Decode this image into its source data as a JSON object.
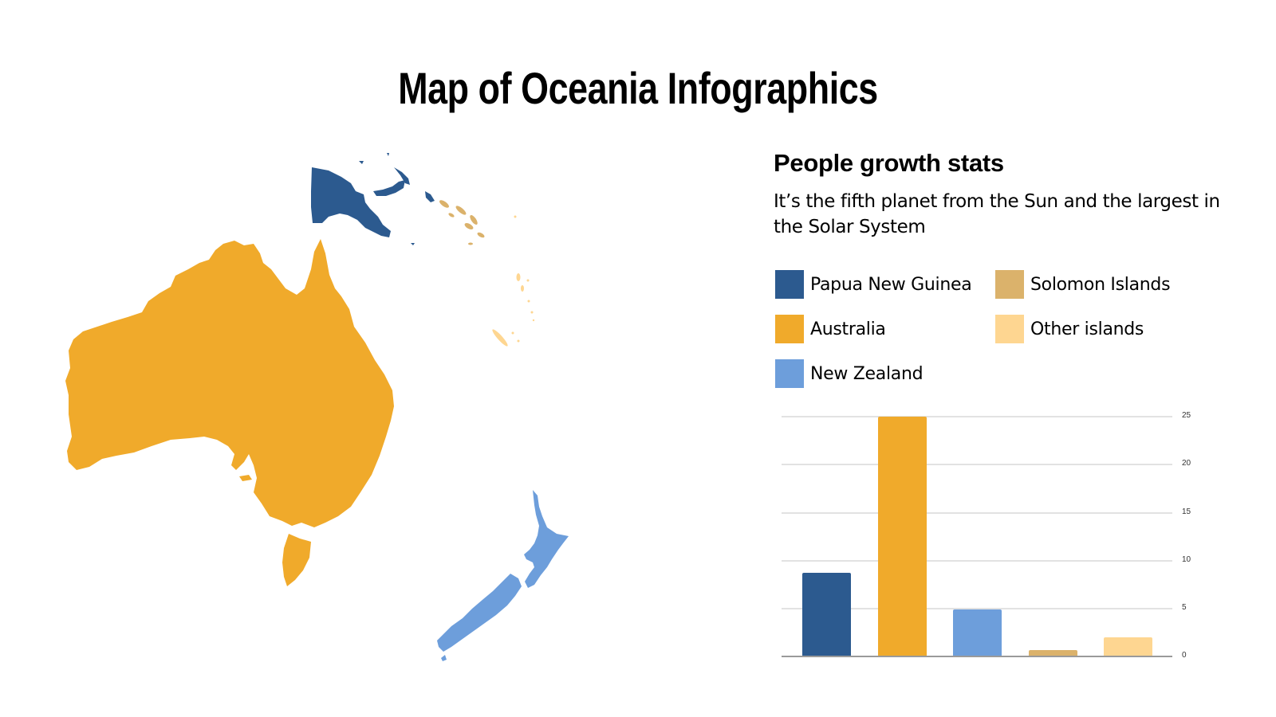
{
  "title": "Map of Oceania Infographics",
  "panel": {
    "heading": "People growth stats",
    "description": "It’s the fifth planet from the Sun and the largest in the Solar System"
  },
  "legend": [
    {
      "label": "Papua New Guinea",
      "color": "#2c5a8f"
    },
    {
      "label": "Australia",
      "color": "#f0aa2b"
    },
    {
      "label": "New Zealand",
      "color": "#6d9edb"
    },
    {
      "label": "Solomon Islands",
      "color": "#dbb26b"
    },
    {
      "label": "Other islands",
      "color": "#fed691"
    }
  ],
  "map": {
    "regions": [
      {
        "name": "Papua New Guinea",
        "color": "#2c5a8f"
      },
      {
        "name": "Australia",
        "color": "#f0aa2b"
      },
      {
        "name": "New Zealand",
        "color": "#6d9edb"
      },
      {
        "name": "Solomon Islands",
        "color": "#dbb26b"
      },
      {
        "name": "Other islands",
        "color": "#fed691"
      }
    ]
  },
  "chart_data": {
    "type": "bar",
    "title": "",
    "categories": [
      "Papua New Guinea",
      "Australia",
      "New Zealand",
      "Solomon Islands",
      "Other islands"
    ],
    "values": [
      8.7,
      25,
      4.8,
      0.6,
      1.9
    ],
    "colors": [
      "#2c5a8f",
      "#f0aa2b",
      "#6d9edb",
      "#dbb26b",
      "#fed691"
    ],
    "xlabel": "",
    "ylabel": "",
    "ylim": [
      0,
      25
    ],
    "yticks": [
      "0",
      "5",
      "10",
      "15",
      "20",
      "25"
    ],
    "grid": true,
    "y_axis_position": "right",
    "legend_position": "above"
  }
}
